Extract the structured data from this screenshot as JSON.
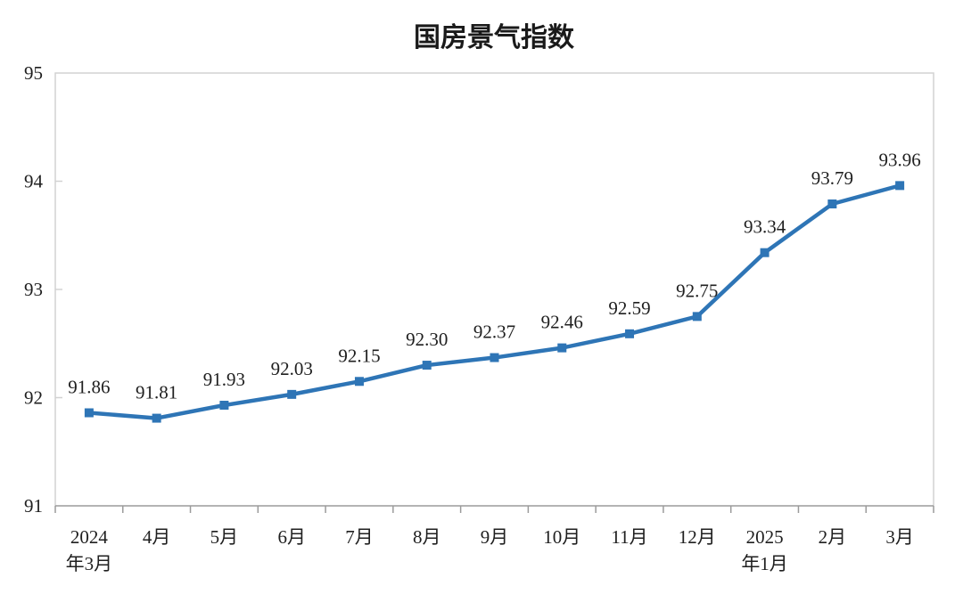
{
  "chart_data": {
    "type": "line",
    "title": "国房景气指数",
    "categories": [
      "2024年3月",
      "4月",
      "5月",
      "6月",
      "7月",
      "8月",
      "9月",
      "10月",
      "11月",
      "12月",
      "2025年1月",
      "2月",
      "3月"
    ],
    "category_lines": [
      [
        "2024",
        "年3月"
      ],
      [
        "4月"
      ],
      [
        "5月"
      ],
      [
        "6月"
      ],
      [
        "7月"
      ],
      [
        "8月"
      ],
      [
        "9月"
      ],
      [
        "10月"
      ],
      [
        "11月"
      ],
      [
        "12月"
      ],
      [
        "2025",
        "年1月"
      ],
      [
        "2月"
      ],
      [
        "3月"
      ]
    ],
    "values": [
      91.86,
      91.81,
      91.93,
      92.03,
      92.15,
      92.3,
      92.37,
      92.46,
      92.59,
      92.75,
      93.34,
      93.79,
      93.96
    ],
    "data_labels": [
      "91.86",
      "91.81",
      "91.93",
      "92.03",
      "92.15",
      "92.30",
      "92.37",
      "92.46",
      "92.59",
      "92.75",
      "93.34",
      "93.79",
      "93.96"
    ],
    "xlabel": "",
    "ylabel": "",
    "ylim": [
      91,
      95
    ],
    "yticks": [
      91,
      92,
      93,
      94,
      95
    ],
    "grid": false,
    "legend": "none",
    "marker": "square",
    "colors": {
      "line": "#2e75b6",
      "data_label": "#1f1f1f",
      "tick_label": "#1f1f1f",
      "title": "#1a1a1a",
      "axis": "#9b9b9b",
      "border": "#d2d2d2",
      "background": "#ffffff"
    }
  }
}
